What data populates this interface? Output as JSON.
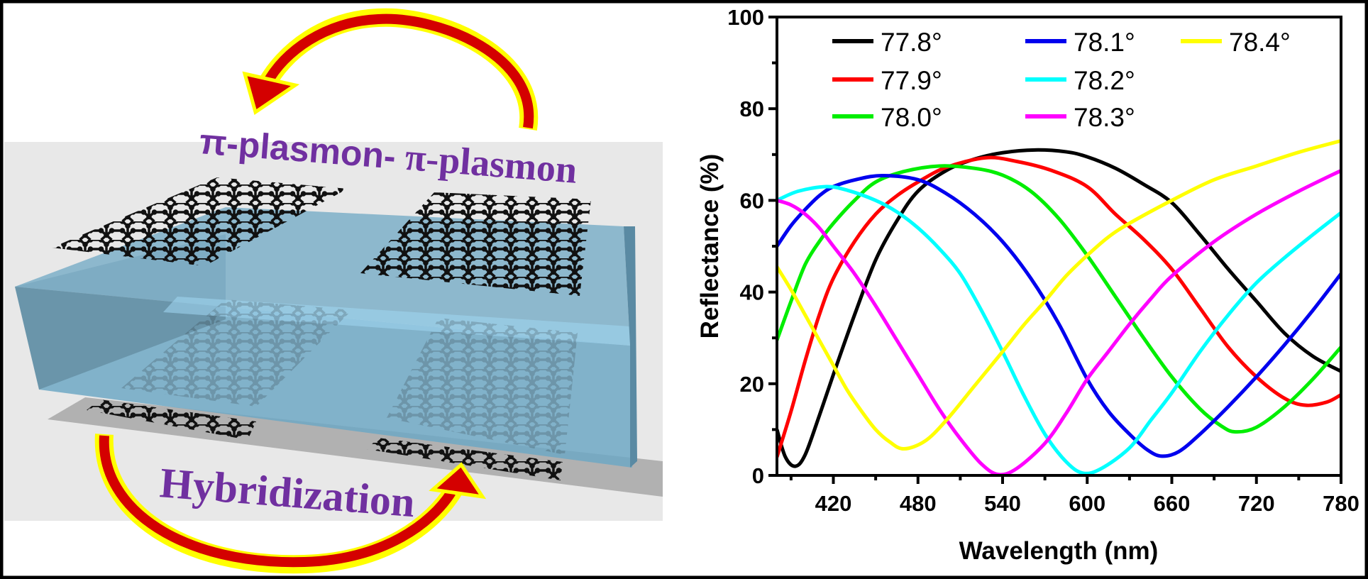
{
  "illustration": {
    "top_label_part1": "π-plasmon-",
    "top_label_part2": " π-plasmon",
    "bottom_label": "Hybridization",
    "text_color": "#7030a0",
    "arrow_fill": "#d40000",
    "arrow_outline": "#ffff00",
    "substrate_color": "#6fa8c4",
    "background_color": "#e8e8e8"
  },
  "chart_data": {
    "type": "line",
    "xlabel": "Wavelength (nm)",
    "ylabel": "Reflectance (%)",
    "xlim": [
      380,
      780
    ],
    "ylim": [
      0,
      100
    ],
    "xticks": [
      420,
      480,
      540,
      600,
      660,
      720,
      780
    ],
    "xminor": [
      390,
      450,
      510,
      570,
      630,
      690,
      750
    ],
    "yticks": [
      0,
      20,
      40,
      60,
      80,
      100
    ],
    "yminor": [
      10,
      30,
      50,
      70,
      90
    ],
    "grid": false,
    "legend_placement": "top",
    "series": [
      {
        "name": "77.8°",
        "color": "#000000",
        "points": [
          [
            380,
            10
          ],
          [
            386,
            4
          ],
          [
            393,
            2
          ],
          [
            400,
            4.5
          ],
          [
            410,
            13
          ],
          [
            420,
            22
          ],
          [
            435,
            35
          ],
          [
            450,
            47
          ],
          [
            465,
            55.5
          ],
          [
            480,
            62
          ],
          [
            500,
            66.5
          ],
          [
            520,
            69
          ],
          [
            540,
            70.4
          ],
          [
            563,
            71
          ],
          [
            585,
            70.6
          ],
          [
            600,
            69.5
          ],
          [
            620,
            67
          ],
          [
            640,
            63.5
          ],
          [
            660,
            59.5
          ],
          [
            680,
            52.5
          ],
          [
            700,
            45
          ],
          [
            720,
            38
          ],
          [
            740,
            31
          ],
          [
            760,
            26
          ],
          [
            780,
            22.7
          ]
        ]
      },
      {
        "name": "77.9°",
        "color": "#ff0000",
        "points": [
          [
            380,
            4
          ],
          [
            390,
            14
          ],
          [
            400,
            25
          ],
          [
            410,
            35
          ],
          [
            420,
            43
          ],
          [
            435,
            51
          ],
          [
            450,
            57
          ],
          [
            465,
            61
          ],
          [
            480,
            64
          ],
          [
            500,
            67.2
          ],
          [
            528,
            69.3
          ],
          [
            550,
            68.5
          ],
          [
            575,
            66.5
          ],
          [
            600,
            63
          ],
          [
            620,
            57
          ],
          [
            640,
            51.5
          ],
          [
            660,
            45
          ],
          [
            680,
            36.5
          ],
          [
            700,
            28
          ],
          [
            720,
            21.5
          ],
          [
            740,
            16.8
          ],
          [
            755,
            15.3
          ],
          [
            770,
            16
          ],
          [
            780,
            17.6
          ]
        ]
      },
      {
        "name": "78.0°",
        "color": "#00ee00",
        "points": [
          [
            380,
            29.5
          ],
          [
            390,
            38
          ],
          [
            400,
            46
          ],
          [
            410,
            51
          ],
          [
            420,
            55
          ],
          [
            435,
            60
          ],
          [
            450,
            64
          ],
          [
            470,
            66.3
          ],
          [
            495,
            67.5
          ],
          [
            520,
            67
          ],
          [
            540,
            65.5
          ],
          [
            560,
            62
          ],
          [
            580,
            56
          ],
          [
            600,
            48
          ],
          [
            620,
            39
          ],
          [
            640,
            30
          ],
          [
            660,
            21.5
          ],
          [
            680,
            14.5
          ],
          [
            695,
            10.8
          ],
          [
            705,
            9.5
          ],
          [
            720,
            10.5
          ],
          [
            740,
            15
          ],
          [
            760,
            21
          ],
          [
            780,
            28
          ]
        ]
      },
      {
        "name": "78.1°",
        "color": "#0000ee",
        "points": [
          [
            380,
            50
          ],
          [
            390,
            54.5
          ],
          [
            400,
            58
          ],
          [
            410,
            61
          ],
          [
            420,
            63
          ],
          [
            437,
            64.6
          ],
          [
            455,
            65.4
          ],
          [
            480,
            64.5
          ],
          [
            500,
            61.5
          ],
          [
            520,
            57
          ],
          [
            540,
            51
          ],
          [
            560,
            43
          ],
          [
            580,
            33
          ],
          [
            600,
            21
          ],
          [
            615,
            14
          ],
          [
            630,
            9
          ],
          [
            643,
            5.5
          ],
          [
            653,
            4.2
          ],
          [
            665,
            5.2
          ],
          [
            680,
            9
          ],
          [
            700,
            15
          ],
          [
            720,
            21.5
          ],
          [
            740,
            28.5
          ],
          [
            760,
            36
          ],
          [
            780,
            44
          ]
        ]
      },
      {
        "name": "78.2°",
        "color": "#00ffff",
        "points": [
          [
            380,
            60
          ],
          [
            395,
            62
          ],
          [
            415,
            63
          ],
          [
            430,
            62.2
          ],
          [
            450,
            60
          ],
          [
            465,
            57.5
          ],
          [
            480,
            54
          ],
          [
            495,
            49.5
          ],
          [
            510,
            44
          ],
          [
            525,
            36
          ],
          [
            540,
            27
          ],
          [
            555,
            17.5
          ],
          [
            570,
            9
          ],
          [
            585,
            3
          ],
          [
            597,
            0.5
          ],
          [
            610,
            1.5
          ],
          [
            630,
            6
          ],
          [
            645,
            12
          ],
          [
            660,
            18
          ],
          [
            680,
            27
          ],
          [
            700,
            35
          ],
          [
            720,
            42
          ],
          [
            740,
            47.5
          ],
          [
            760,
            52.5
          ],
          [
            780,
            57.3
          ]
        ]
      },
      {
        "name": "78.3°",
        "color": "#ff00ff",
        "points": [
          [
            380,
            60
          ],
          [
            390,
            59
          ],
          [
            400,
            57
          ],
          [
            410,
            54
          ],
          [
            420,
            50
          ],
          [
            435,
            44
          ],
          [
            450,
            37
          ],
          [
            465,
            29.5
          ],
          [
            480,
            22
          ],
          [
            495,
            14.5
          ],
          [
            510,
            8
          ],
          [
            525,
            2.5
          ],
          [
            537,
            0.2
          ],
          [
            550,
            1.5
          ],
          [
            570,
            7
          ],
          [
            585,
            13.5
          ],
          [
            600,
            21
          ],
          [
            615,
            27
          ],
          [
            630,
            33
          ],
          [
            645,
            38.5
          ],
          [
            660,
            43.5
          ],
          [
            690,
            51
          ],
          [
            720,
            57
          ],
          [
            750,
            62
          ],
          [
            780,
            66.5
          ]
        ]
      },
      {
        "name": "78.4°",
        "color": "#ffff00",
        "points": [
          [
            380,
            45.5
          ],
          [
            390,
            40.5
          ],
          [
            400,
            35
          ],
          [
            410,
            29.5
          ],
          [
            420,
            24
          ],
          [
            430,
            18.5
          ],
          [
            440,
            14
          ],
          [
            450,
            10
          ],
          [
            460,
            7.3
          ],
          [
            470,
            5.8
          ],
          [
            485,
            7.5
          ],
          [
            500,
            12
          ],
          [
            520,
            19.5
          ],
          [
            540,
            27
          ],
          [
            555,
            32.8
          ],
          [
            570,
            38
          ],
          [
            585,
            43.5
          ],
          [
            600,
            48
          ],
          [
            615,
            52
          ],
          [
            630,
            55
          ],
          [
            660,
            60
          ],
          [
            690,
            64.5
          ],
          [
            720,
            67.5
          ],
          [
            750,
            70.5
          ],
          [
            780,
            73
          ]
        ]
      }
    ]
  }
}
